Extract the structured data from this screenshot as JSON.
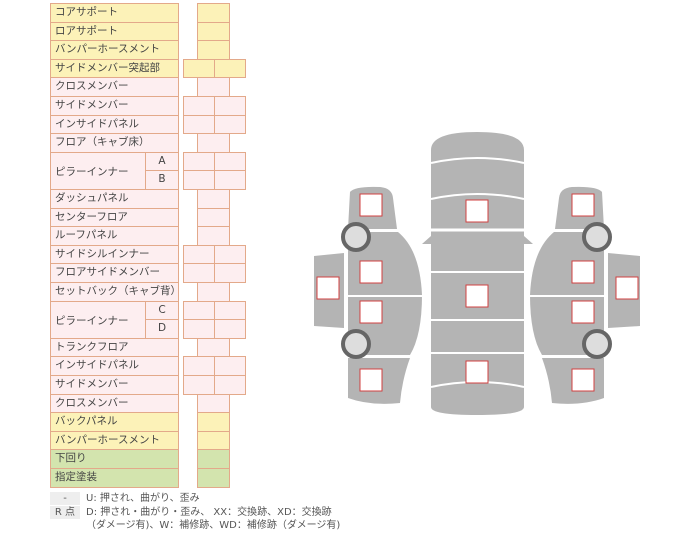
{
  "rows": [
    {
      "label": "コアサポート",
      "color": "y",
      "cells": 1
    },
    {
      "label": "ロアサポート",
      "color": "y",
      "cells": 1
    },
    {
      "label": "バンパーホースメント",
      "color": "y",
      "cells": 1
    },
    {
      "label": "サイドメンバー突起部",
      "color": "y",
      "cells": 2
    },
    {
      "label": "クロスメンバー",
      "color": "p",
      "cells": 1
    },
    {
      "label": "サイドメンバー",
      "color": "p",
      "cells": 2
    },
    {
      "label": "インサイドパネル",
      "color": "p",
      "cells": 2
    },
    {
      "label": "フロア（キャブ床）",
      "color": "p",
      "cells": 1
    },
    {
      "label": "ピラーインナー",
      "color": "p",
      "cells": 2,
      "subs": [
        "A",
        "B"
      ]
    },
    {
      "label": "ダッシュパネル",
      "color": "p",
      "cells": 1
    },
    {
      "label": "センターフロア",
      "color": "p",
      "cells": 1
    },
    {
      "label": "ルーフパネル",
      "color": "p",
      "cells": 1
    },
    {
      "label": "サイドシルインナー",
      "color": "p",
      "cells": 2
    },
    {
      "label": "フロアサイドメンバー",
      "color": "p",
      "cells": 2
    },
    {
      "label": "セットバック（キャブ背）",
      "color": "p",
      "cells": 1
    },
    {
      "label": "ピラーインナー",
      "color": "p",
      "cells": 2,
      "subs": [
        "C",
        "D"
      ]
    },
    {
      "label": "トランクフロア",
      "color": "p",
      "cells": 1
    },
    {
      "label": "インサイドパネル",
      "color": "p",
      "cells": 2
    },
    {
      "label": "サイドメンバー",
      "color": "p",
      "cells": 2
    },
    {
      "label": "クロスメンバー",
      "color": "p",
      "cells": 1
    },
    {
      "label": "バックパネル",
      "color": "y",
      "cells": 1
    },
    {
      "label": "バンパーホースメント",
      "color": "y",
      "cells": 1
    },
    {
      "label": "下回り",
      "color": "g",
      "cells": 1
    },
    {
      "label": "指定塗装",
      "color": "g",
      "cells": 1
    }
  ],
  "legend": {
    "tag1": "-",
    "line1": "U: 押され、曲がり、歪み",
    "tag2": "R 点",
    "line2": "D: 押され・曲がり・歪み、 XX：交換跡、XD：交換跡",
    "line3": "（ダメージ有)、W：補修跡、WD：補修跡（ダメージ有)"
  },
  "colors": {
    "y": "#fcf2b8",
    "p": "#fdeef0",
    "g": "#d3e4ae",
    "border": "#e3a98a",
    "car": "#b4b4b4",
    "mark": "#d04040"
  }
}
